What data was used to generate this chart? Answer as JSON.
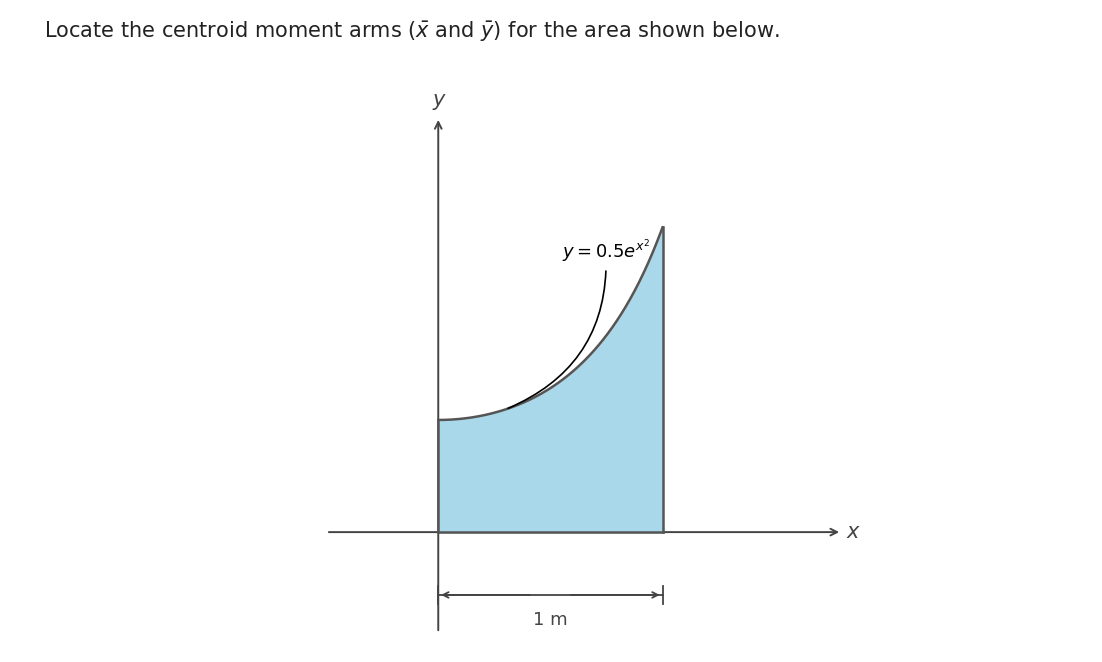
{
  "background_color": "#ffffff",
  "fill_color": "#a8d8ea",
  "fill_alpha": 1.0,
  "border_color": "#555555",
  "axis_line_color": "#444444",
  "title_fontsize": 15,
  "x_label": "x",
  "y_label": "y",
  "dim_label": "1 m",
  "xlim": [
    -0.55,
    1.85
  ],
  "ylim": [
    -0.52,
    1.9
  ]
}
